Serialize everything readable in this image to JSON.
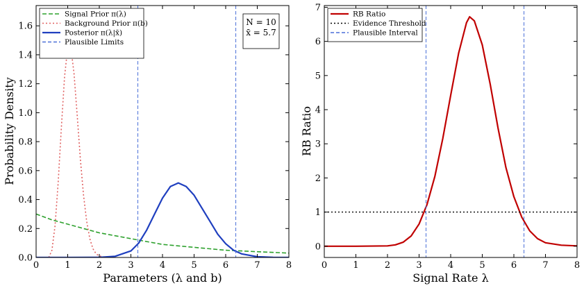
{
  "chart_data": [
    {
      "type": "line",
      "xlabel": "Parameters (λ and b)",
      "ylabel": "Probability Density",
      "xlim": [
        0,
        8
      ],
      "ylim": [
        0,
        1.74
      ],
      "xticks": [
        "0",
        "1",
        "2",
        "3",
        "4",
        "5",
        "6",
        "7",
        "8"
      ],
      "yticks": [
        "0.0",
        "0.2",
        "0.4",
        "0.6",
        "0.8",
        "1.0",
        "1.2",
        "1.4",
        "1.6"
      ],
      "legend_position": "top-left",
      "annotation": {
        "line1": "N = 10",
        "line2": "x̄ = 5.7",
        "position": "top-right"
      },
      "series": [
        {
          "name": "Signal Prior π(λ)",
          "style": "dashed",
          "color": "#2ca02c",
          "x": [
            0,
            0.5,
            1,
            1.5,
            2,
            2.5,
            3,
            3.5,
            4,
            4.5,
            5,
            5.5,
            6,
            6.5,
            7,
            7.5,
            8
          ],
          "y": [
            0.3,
            0.26,
            0.23,
            0.2,
            0.17,
            0.15,
            0.13,
            0.11,
            0.09,
            0.08,
            0.07,
            0.06,
            0.05,
            0.045,
            0.04,
            0.035,
            0.03
          ]
        },
        {
          "name": "Background Prior π(b)",
          "style": "dotted",
          "color": "#e06060",
          "x": [
            0.4,
            0.5,
            0.6,
            0.7,
            0.8,
            0.9,
            1.0,
            1.05,
            1.1,
            1.2,
            1.3,
            1.4,
            1.5,
            1.6,
            1.7,
            1.8,
            1.9,
            2.0,
            2.2
          ],
          "y": [
            0.0,
            0.05,
            0.22,
            0.52,
            0.9,
            1.25,
            1.45,
            1.48,
            1.45,
            1.27,
            0.98,
            0.68,
            0.43,
            0.25,
            0.13,
            0.06,
            0.025,
            0.01,
            0.0
          ]
        },
        {
          "name": "Posterior π(λ|x̄)",
          "style": "solid",
          "color": "#1f3fbf",
          "x": [
            0,
            1,
            2,
            2.5,
            3,
            3.25,
            3.5,
            3.75,
            4,
            4.25,
            4.5,
            4.75,
            5,
            5.25,
            5.5,
            5.75,
            6,
            6.25,
            6.5,
            7,
            7.5,
            8
          ],
          "y": [
            0.0,
            0.0,
            0.001,
            0.008,
            0.045,
            0.1,
            0.19,
            0.3,
            0.41,
            0.49,
            0.515,
            0.49,
            0.43,
            0.34,
            0.25,
            0.16,
            0.095,
            0.05,
            0.025,
            0.005,
            0.001,
            0.0
          ]
        },
        {
          "name": "Plausible Limits",
          "style": "dashed-vertical",
          "color": "#4a6fd8",
          "x": [
            3.22,
            6.32
          ]
        }
      ]
    },
    {
      "type": "line",
      "xlabel": "Signal Rate λ",
      "ylabel": "RB Ratio",
      "xlim": [
        0,
        8
      ],
      "ylim": [
        -0.33,
        7.05
      ],
      "xticks": [
        "0",
        "1",
        "2",
        "3",
        "4",
        "5",
        "6",
        "7",
        "8"
      ],
      "yticks": [
        "0",
        "1",
        "2",
        "3",
        "4",
        "5",
        "6",
        "7"
      ],
      "legend_position": "top-left",
      "series": [
        {
          "name": "RB Ratio",
          "style": "solid",
          "color": "#c00000",
          "x": [
            0,
            1,
            2,
            2.25,
            2.5,
            2.75,
            3,
            3.25,
            3.5,
            3.75,
            4,
            4.25,
            4.5,
            4.6,
            4.75,
            5,
            5.25,
            5.5,
            5.75,
            6,
            6.25,
            6.5,
            6.75,
            7,
            7.5,
            8
          ],
          "y": [
            0,
            0,
            0.01,
            0.04,
            0.12,
            0.3,
            0.65,
            1.22,
            2.05,
            3.15,
            4.42,
            5.65,
            6.55,
            6.72,
            6.6,
            5.9,
            4.75,
            3.45,
            2.3,
            1.45,
            0.85,
            0.45,
            0.22,
            0.1,
            0.03,
            0.01
          ]
        },
        {
          "name": "Evidence Threshold",
          "style": "dotted-horizontal",
          "color": "#000000",
          "y": [
            1
          ]
        },
        {
          "name": "Plausible Interval",
          "style": "dashed-vertical",
          "color": "#4a6fd8",
          "x": [
            3.22,
            6.32
          ]
        }
      ]
    }
  ]
}
